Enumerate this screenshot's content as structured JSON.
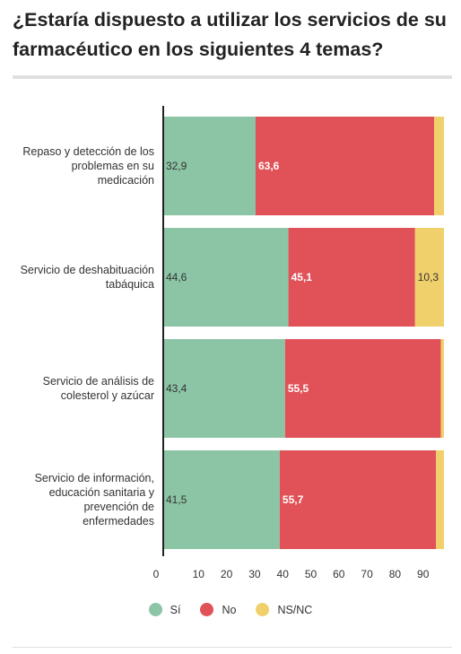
{
  "title": "¿Estaría dispuesto a utilizar los servicios de su farmacéutico en los siguientes 4 temas?",
  "chart_data": {
    "type": "bar",
    "orientation": "horizontal",
    "stacked": true,
    "title": "¿Estaría dispuesto a utilizar los servicios de su farmacéutico en los siguientes 4 temas?",
    "categories": [
      "Repaso y detección de los problemas en su medicación",
      "Servicio de deshabituación tabáquica",
      "Servicio de análisis de colesterol y azúcar",
      "Servicio de información, educación sanitaria y prevención de enfermedades"
    ],
    "category_lines": [
      [
        "Repaso y detección de los",
        "problemas en su",
        "medicación"
      ],
      [
        "Servicio de deshabituación",
        "tabáquica"
      ],
      [
        "Servicio de análisis de",
        "colesterol y azúcar"
      ],
      [
        "Servicio de información,",
        "educación sanitaria y",
        "prevención de",
        "enfermedades"
      ]
    ],
    "series": [
      {
        "name": "Sí",
        "color": "#8cc4a6",
        "values": [
          32.9,
          44.6,
          43.4,
          41.5
        ],
        "labels": [
          "32,9",
          "44,6",
          "43,4",
          "41,5"
        ]
      },
      {
        "name": "No",
        "color": "#e05257",
        "values": [
          63.6,
          45.1,
          55.5,
          55.7
        ],
        "labels": [
          "63,6",
          "45,1",
          "55,5",
          "55,7"
        ]
      },
      {
        "name": "NS/NC",
        "color": "#f0d06a",
        "values": [
          3.5,
          10.3,
          1.1,
          2.8
        ],
        "labels": [
          "",
          "10,3",
          "",
          ""
        ]
      }
    ],
    "xlim": [
      0,
      100
    ],
    "xticks": [
      0,
      10,
      20,
      30,
      40,
      50,
      60,
      70,
      80,
      90
    ],
    "xlabel": "",
    "ylabel": "",
    "grid": false,
    "legend_position": "bottom"
  }
}
